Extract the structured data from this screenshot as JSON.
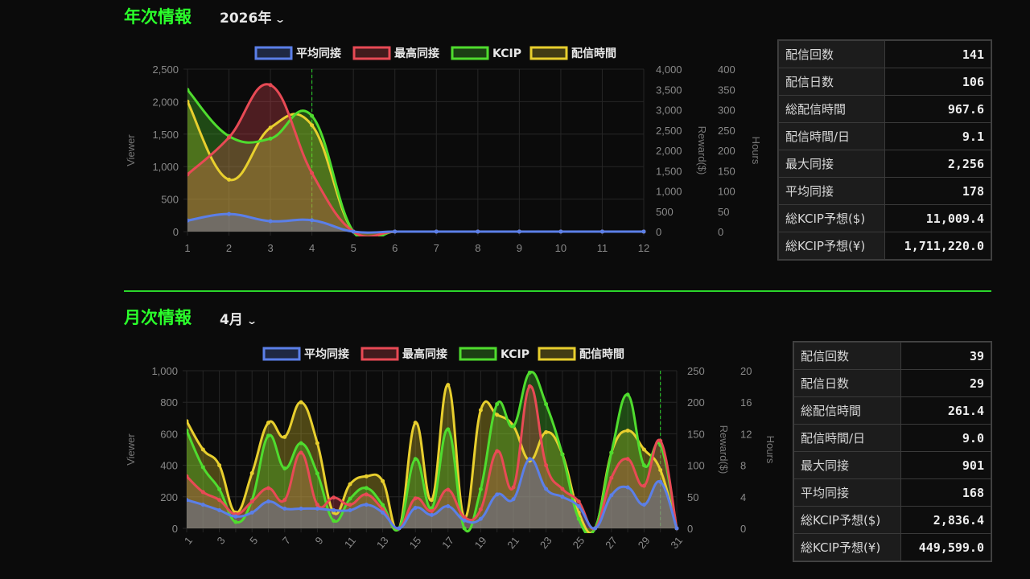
{
  "yearly": {
    "heading": "年次情報",
    "selected": "2026年",
    "stats": [
      {
        "label": "配信回数",
        "value": "141"
      },
      {
        "label": "配信日数",
        "value": "106"
      },
      {
        "label": "総配信時間",
        "value": "967.6"
      },
      {
        "label": "配信時間/日",
        "value": "9.1"
      },
      {
        "label": "最大同接",
        "value": "2,256"
      },
      {
        "label": "平均同接",
        "value": "178"
      },
      {
        "label": "総KCIP予想($)",
        "value": "11,009.4"
      },
      {
        "label": "総KCIP予想(¥)",
        "value": "1,711,220.0"
      }
    ]
  },
  "monthly": {
    "heading": "月次情報",
    "selected": "4月",
    "stats": [
      {
        "label": "配信回数",
        "value": "39"
      },
      {
        "label": "配信日数",
        "value": "29"
      },
      {
        "label": "総配信時間",
        "value": "261.4"
      },
      {
        "label": "配信時間/日",
        "value": "9.0"
      },
      {
        "label": "最大同接",
        "value": "901"
      },
      {
        "label": "平均同接",
        "value": "168"
      },
      {
        "label": "総KCIP予想($)",
        "value": "2,836.4"
      },
      {
        "label": "総KCIP予想(¥)",
        "value": "449,599.0"
      }
    ]
  },
  "icons": {
    "dropdown": "chevron-down-icon"
  },
  "colors": {
    "accent": "#2bff2b",
    "avg": "#5b7fe8",
    "max": "#e84a55",
    "kcip": "#4fdc2e",
    "hours": "#e8cf2e"
  },
  "chart_data": [
    {
      "type": "line",
      "categories": [
        "1",
        "2",
        "3",
        "4",
        "5",
        "6",
        "7",
        "8",
        "9",
        "10",
        "11",
        "12"
      ],
      "current_marker": "4",
      "axes": {
        "viewer": {
          "label": "Viewer",
          "ylim": [
            0,
            2500
          ],
          "ticks": [
            "0",
            "500",
            "1,000",
            "1,500",
            "2,000",
            "2,500"
          ]
        },
        "reward": {
          "label": "Reward($)",
          "ylim": [
            0,
            4000
          ],
          "ticks": [
            "0",
            "500",
            "1,000",
            "1,500",
            "2,000",
            "2,500",
            "3,000",
            "3,500",
            "4,000"
          ]
        },
        "hours": {
          "label": "Hours",
          "ylim": [
            0,
            400
          ],
          "ticks": [
            "0",
            "50",
            "100",
            "150",
            "200",
            "250",
            "300",
            "350",
            "400"
          ]
        }
      },
      "legend_position": "top",
      "grid": true,
      "series": [
        {
          "name": "平均同接",
          "axis": "viewer",
          "color": "#5b7fe8",
          "values": [
            170,
            270,
            160,
            175,
            0,
            0,
            0,
            0,
            0,
            0,
            0,
            0
          ]
        },
        {
          "name": "最高同接",
          "axis": "viewer",
          "color": "#e84a55",
          "values": [
            880,
            1450,
            2256,
            900,
            0,
            0,
            0,
            0,
            0,
            0,
            0,
            0
          ]
        },
        {
          "name": "KCIP",
          "axis": "reward",
          "color": "#4fdc2e",
          "values": [
            3490,
            2350,
            2290,
            2850,
            0,
            0,
            0,
            0,
            0,
            0,
            0,
            0
          ]
        },
        {
          "name": "配信時間",
          "axis": "hours",
          "color": "#e8cf2e",
          "values": [
            320,
            128,
            256,
            262,
            0,
            0,
            0,
            0,
            0,
            0,
            0,
            0
          ]
        }
      ]
    },
    {
      "type": "line",
      "categories": [
        "1",
        "2",
        "3",
        "4",
        "5",
        "6",
        "7",
        "8",
        "9",
        "10",
        "11",
        "12",
        "13",
        "14",
        "15",
        "16",
        "17",
        "18",
        "19",
        "20",
        "21",
        "22",
        "23",
        "24",
        "25",
        "26",
        "27",
        "28",
        "29",
        "30",
        "31"
      ],
      "current_marker": "30",
      "axes": {
        "viewer": {
          "label": "Viewer",
          "ylim": [
            0,
            1000
          ],
          "ticks": [
            "0",
            "200",
            "400",
            "600",
            "800",
            "1,000"
          ]
        },
        "reward": {
          "label": "Reward($)",
          "ylim": [
            0,
            250
          ],
          "ticks": [
            "0",
            "50",
            "100",
            "150",
            "200",
            "250"
          ]
        },
        "hours": {
          "label": "Hours",
          "ylim": [
            0,
            20
          ],
          "ticks": [
            "0",
            "4",
            "8",
            "12",
            "16",
            "20"
          ]
        }
      },
      "legend_position": "top",
      "grid": true,
      "series": [
        {
          "name": "平均同接",
          "axis": "viewer",
          "color": "#5b7fe8",
          "values": [
            180,
            150,
            115,
            75,
            100,
            170,
            125,
            125,
            125,
            115,
            115,
            150,
            100,
            0,
            130,
            85,
            140,
            50,
            60,
            215,
            185,
            440,
            250,
            200,
            140,
            0,
            210,
            260,
            150,
            295,
            0
          ]
        },
        {
          "name": "最高同接",
          "axis": "viewer",
          "color": "#e84a55",
          "values": [
            330,
            230,
            180,
            90,
            170,
            255,
            180,
            480,
            150,
            195,
            150,
            215,
            120,
            0,
            190,
            110,
            245,
            70,
            120,
            490,
            260,
            901,
            400,
            250,
            170,
            0,
            320,
            440,
            270,
            555,
            0
          ]
        },
        {
          "name": "KCIP",
          "axis": "reward",
          "color": "#4fdc2e",
          "values": [
            155,
            97,
            62,
            10,
            45,
            147,
            95,
            135,
            87,
            12,
            47,
            64,
            37,
            0,
            110,
            32,
            157,
            0,
            62,
            197,
            162,
            247,
            197,
            117,
            15,
            0,
            120,
            212,
            100,
            132,
            0
          ]
        },
        {
          "name": "配信時間",
          "axis": "hours",
          "color": "#e8cf2e",
          "values": [
            13.6,
            10,
            8,
            2,
            7,
            13.4,
            11.6,
            16,
            10.8,
            2,
            5.6,
            6.6,
            6,
            0,
            13.4,
            3.6,
            18.2,
            1.4,
            15,
            14.4,
            13,
            8.6,
            12.2,
            9.4,
            2,
            0,
            9.6,
            12.4,
            10,
            7.4,
            0
          ]
        }
      ]
    }
  ]
}
